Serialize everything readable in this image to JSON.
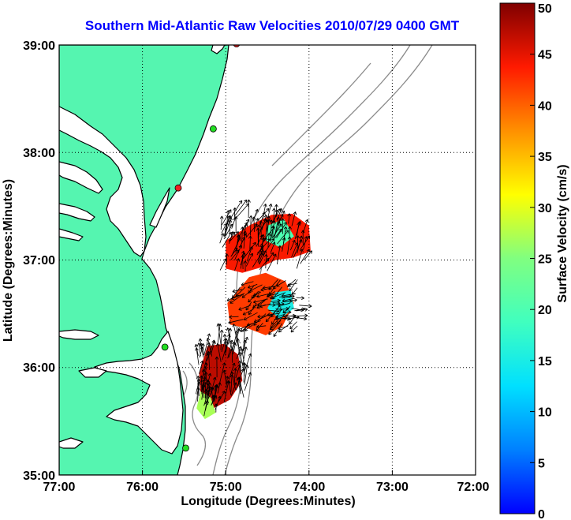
{
  "title": "Southern Mid-Atlantic Raw Velocities 2010/07/29 0400 GMT",
  "axes": {
    "xlabel": "Longitude (Degrees:Minutes)",
    "ylabel": "Latitude (Degrees:Minutes)",
    "x_ticks": [
      "77:00",
      "76:00",
      "75:00",
      "74:00",
      "73:00",
      "72:00"
    ],
    "y_ticks": [
      "39:00",
      "38:00",
      "37:00",
      "36:00",
      "35:00"
    ],
    "x_range": [
      -77,
      -72
    ],
    "y_range": [
      35,
      39
    ],
    "grid": "dotted"
  },
  "colorbar": {
    "label": "Surface Velocity (cm/s)",
    "ticks": [
      "50",
      "45",
      "40",
      "35",
      "30",
      "25",
      "20",
      "15",
      "10",
      "5",
      "0"
    ],
    "range": [
      0,
      50
    ],
    "colormap": "jet"
  },
  "colors": {
    "land": "#55f5b0",
    "coastline": "#000000",
    "bathymetry": "#8a8a8a",
    "title": "#0000ff",
    "station_green": "#22dd22",
    "station_red": "#ee2222"
  },
  "stations": [
    {
      "lon": -74.87,
      "lat": 39.01,
      "status": "red"
    },
    {
      "lon": -75.15,
      "lat": 38.22,
      "status": "green"
    },
    {
      "lon": -75.57,
      "lat": 37.67,
      "status": "red"
    },
    {
      "lon": -75.73,
      "lat": 36.19,
      "status": "green"
    },
    {
      "lon": -75.48,
      "lat": 35.25,
      "status": "green"
    }
  ],
  "velocity_regions": [
    {
      "name": "north",
      "vertices": [
        [
          -75.0,
          37.18
        ],
        [
          -74.72,
          37.32
        ],
        [
          -74.45,
          37.42
        ],
        [
          -74.2,
          37.43
        ],
        [
          -74.0,
          37.32
        ],
        [
          -73.98,
          37.08
        ],
        [
          -74.2,
          37.02
        ],
        [
          -74.4,
          37.0
        ],
        [
          -74.58,
          36.93
        ],
        [
          -74.8,
          36.88
        ],
        [
          -75.0,
          36.92
        ]
      ],
      "speed": 44
    },
    {
      "name": "north-core",
      "vertices": [
        [
          -74.5,
          37.32
        ],
        [
          -74.3,
          37.38
        ],
        [
          -74.18,
          37.22
        ],
        [
          -74.35,
          37.12
        ],
        [
          -74.52,
          37.18
        ]
      ],
      "speed": 20
    },
    {
      "name": "middle",
      "vertices": [
        [
          -74.98,
          36.6
        ],
        [
          -74.72,
          36.84
        ],
        [
          -74.52,
          36.88
        ],
        [
          -74.28,
          36.8
        ],
        [
          -74.18,
          36.6
        ],
        [
          -74.32,
          36.38
        ],
        [
          -74.52,
          36.3
        ],
        [
          -74.72,
          36.36
        ],
        [
          -74.95,
          36.4
        ]
      ],
      "speed": 42
    },
    {
      "name": "middle-core",
      "vertices": [
        [
          -74.4,
          36.7
        ],
        [
          -74.22,
          36.72
        ],
        [
          -74.18,
          36.55
        ],
        [
          -74.35,
          36.45
        ],
        [
          -74.5,
          36.55
        ]
      ],
      "speed": 15
    },
    {
      "name": "south",
      "vertices": [
        [
          -75.22,
          36.2
        ],
        [
          -75.02,
          36.22
        ],
        [
          -74.85,
          36.12
        ],
        [
          -74.8,
          35.88
        ],
        [
          -74.95,
          35.7
        ],
        [
          -75.15,
          35.62
        ],
        [
          -75.3,
          35.72
        ],
        [
          -75.32,
          35.95
        ]
      ],
      "speed": 47
    },
    {
      "name": "south-tip",
      "vertices": [
        [
          -75.3,
          35.78
        ],
        [
          -75.18,
          35.72
        ],
        [
          -75.12,
          35.58
        ],
        [
          -75.25,
          35.52
        ],
        [
          -75.35,
          35.62
        ]
      ],
      "speed": 27
    }
  ]
}
